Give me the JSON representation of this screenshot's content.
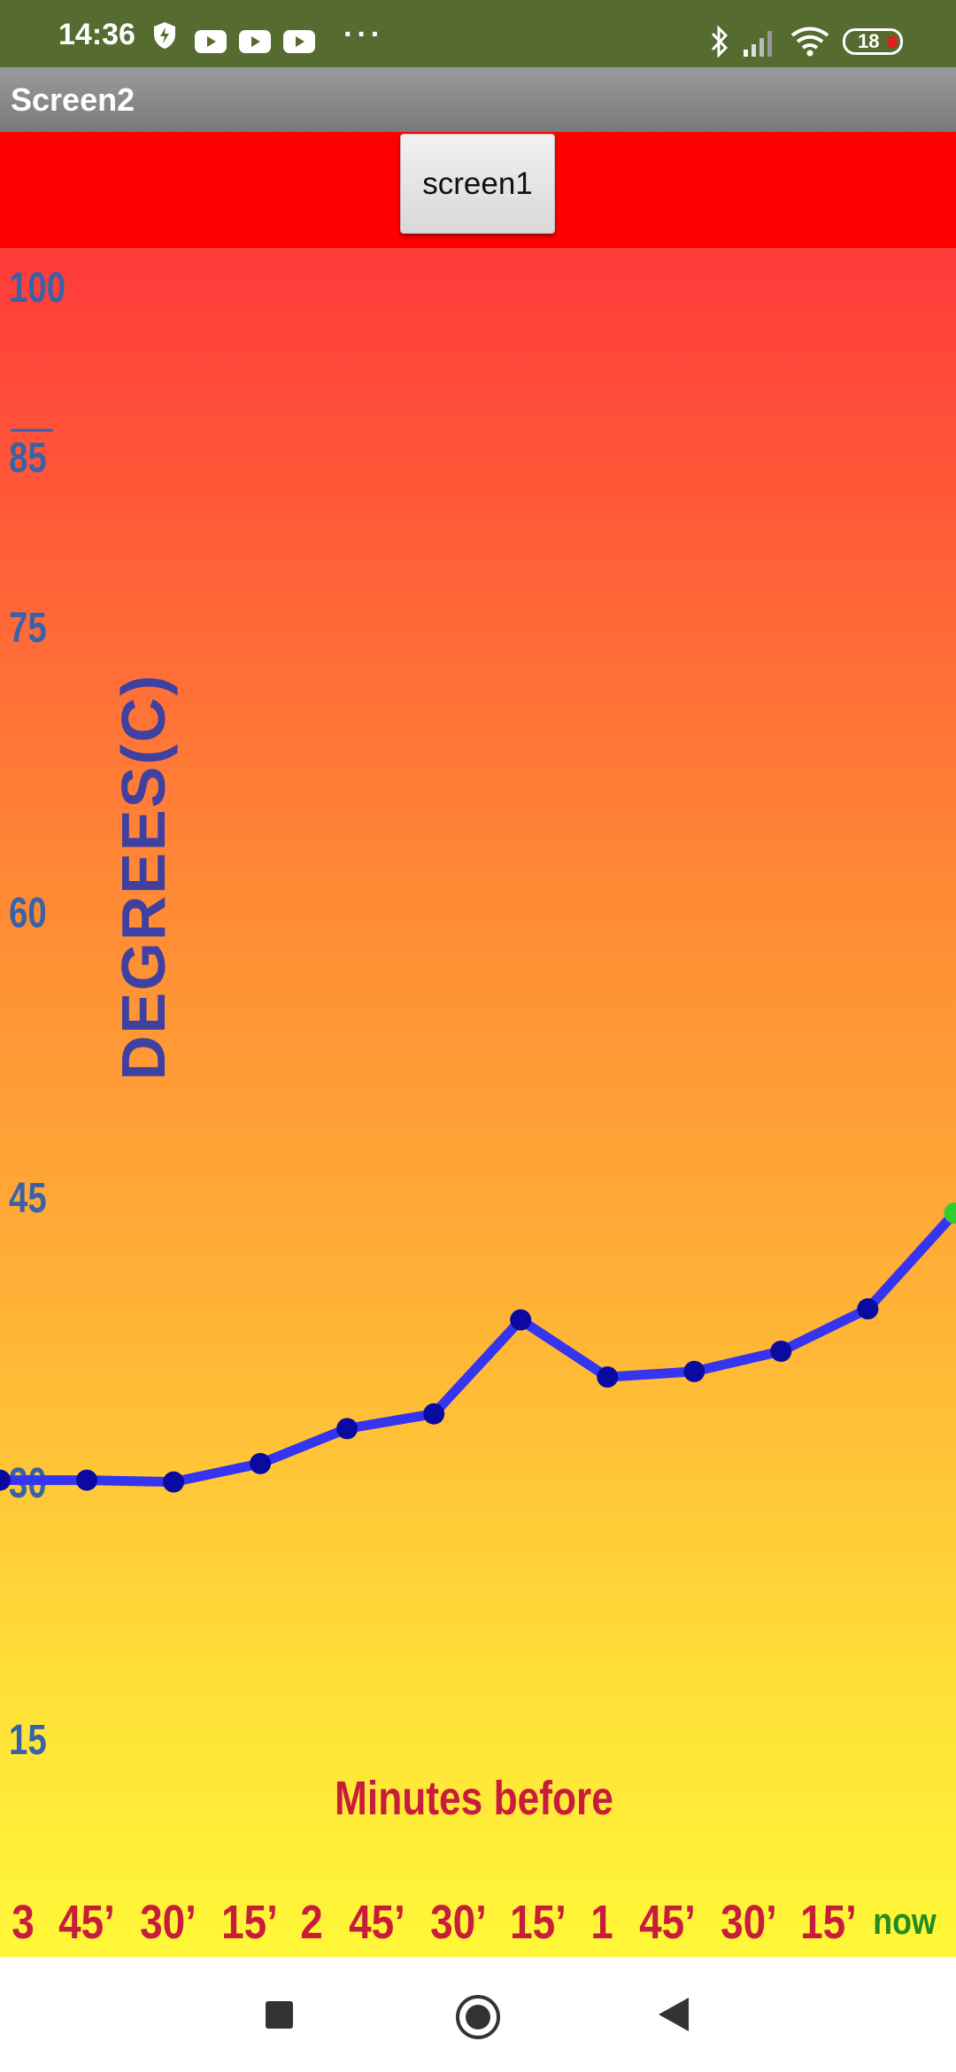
{
  "status_bar": {
    "time": "14:36",
    "more": "···",
    "battery": "18",
    "icons": [
      "shield-icon",
      "youtube-icon",
      "youtube-icon",
      "youtube-icon",
      "bluetooth-icon",
      "signal-icon",
      "wifi-icon",
      "battery-icon"
    ]
  },
  "title_bar": {
    "title": "Screen2"
  },
  "top_panel": {
    "button_label": "screen1",
    "background": "#ff0000"
  },
  "chart_data": {
    "type": "line",
    "ylabel": "DEGREES(C)",
    "xlabel": "Minutes before",
    "y_ticks": [
      "100",
      "85",
      "75",
      "60",
      "45",
      "30",
      "15"
    ],
    "x_ticks": [
      "3",
      "45’",
      "30’",
      "15’",
      "2",
      "45’",
      "30’",
      "15’",
      "1",
      "45’",
      "30’",
      "15’",
      "now"
    ],
    "series": [
      {
        "values": [
          30.5,
          30.5,
          30.4,
          31.4,
          33.3,
          34.1,
          39.2,
          36.1,
          36.4,
          37.5,
          39.8,
          45
        ]
      }
    ],
    "ylim": [
      10,
      100
    ],
    "line_color": "#3535f0",
    "point_color": "#0a0aa0",
    "last_point_color": "#33cc33"
  },
  "nav_bar": {
    "icons": [
      "recents-icon",
      "home-icon",
      "back-icon"
    ]
  }
}
